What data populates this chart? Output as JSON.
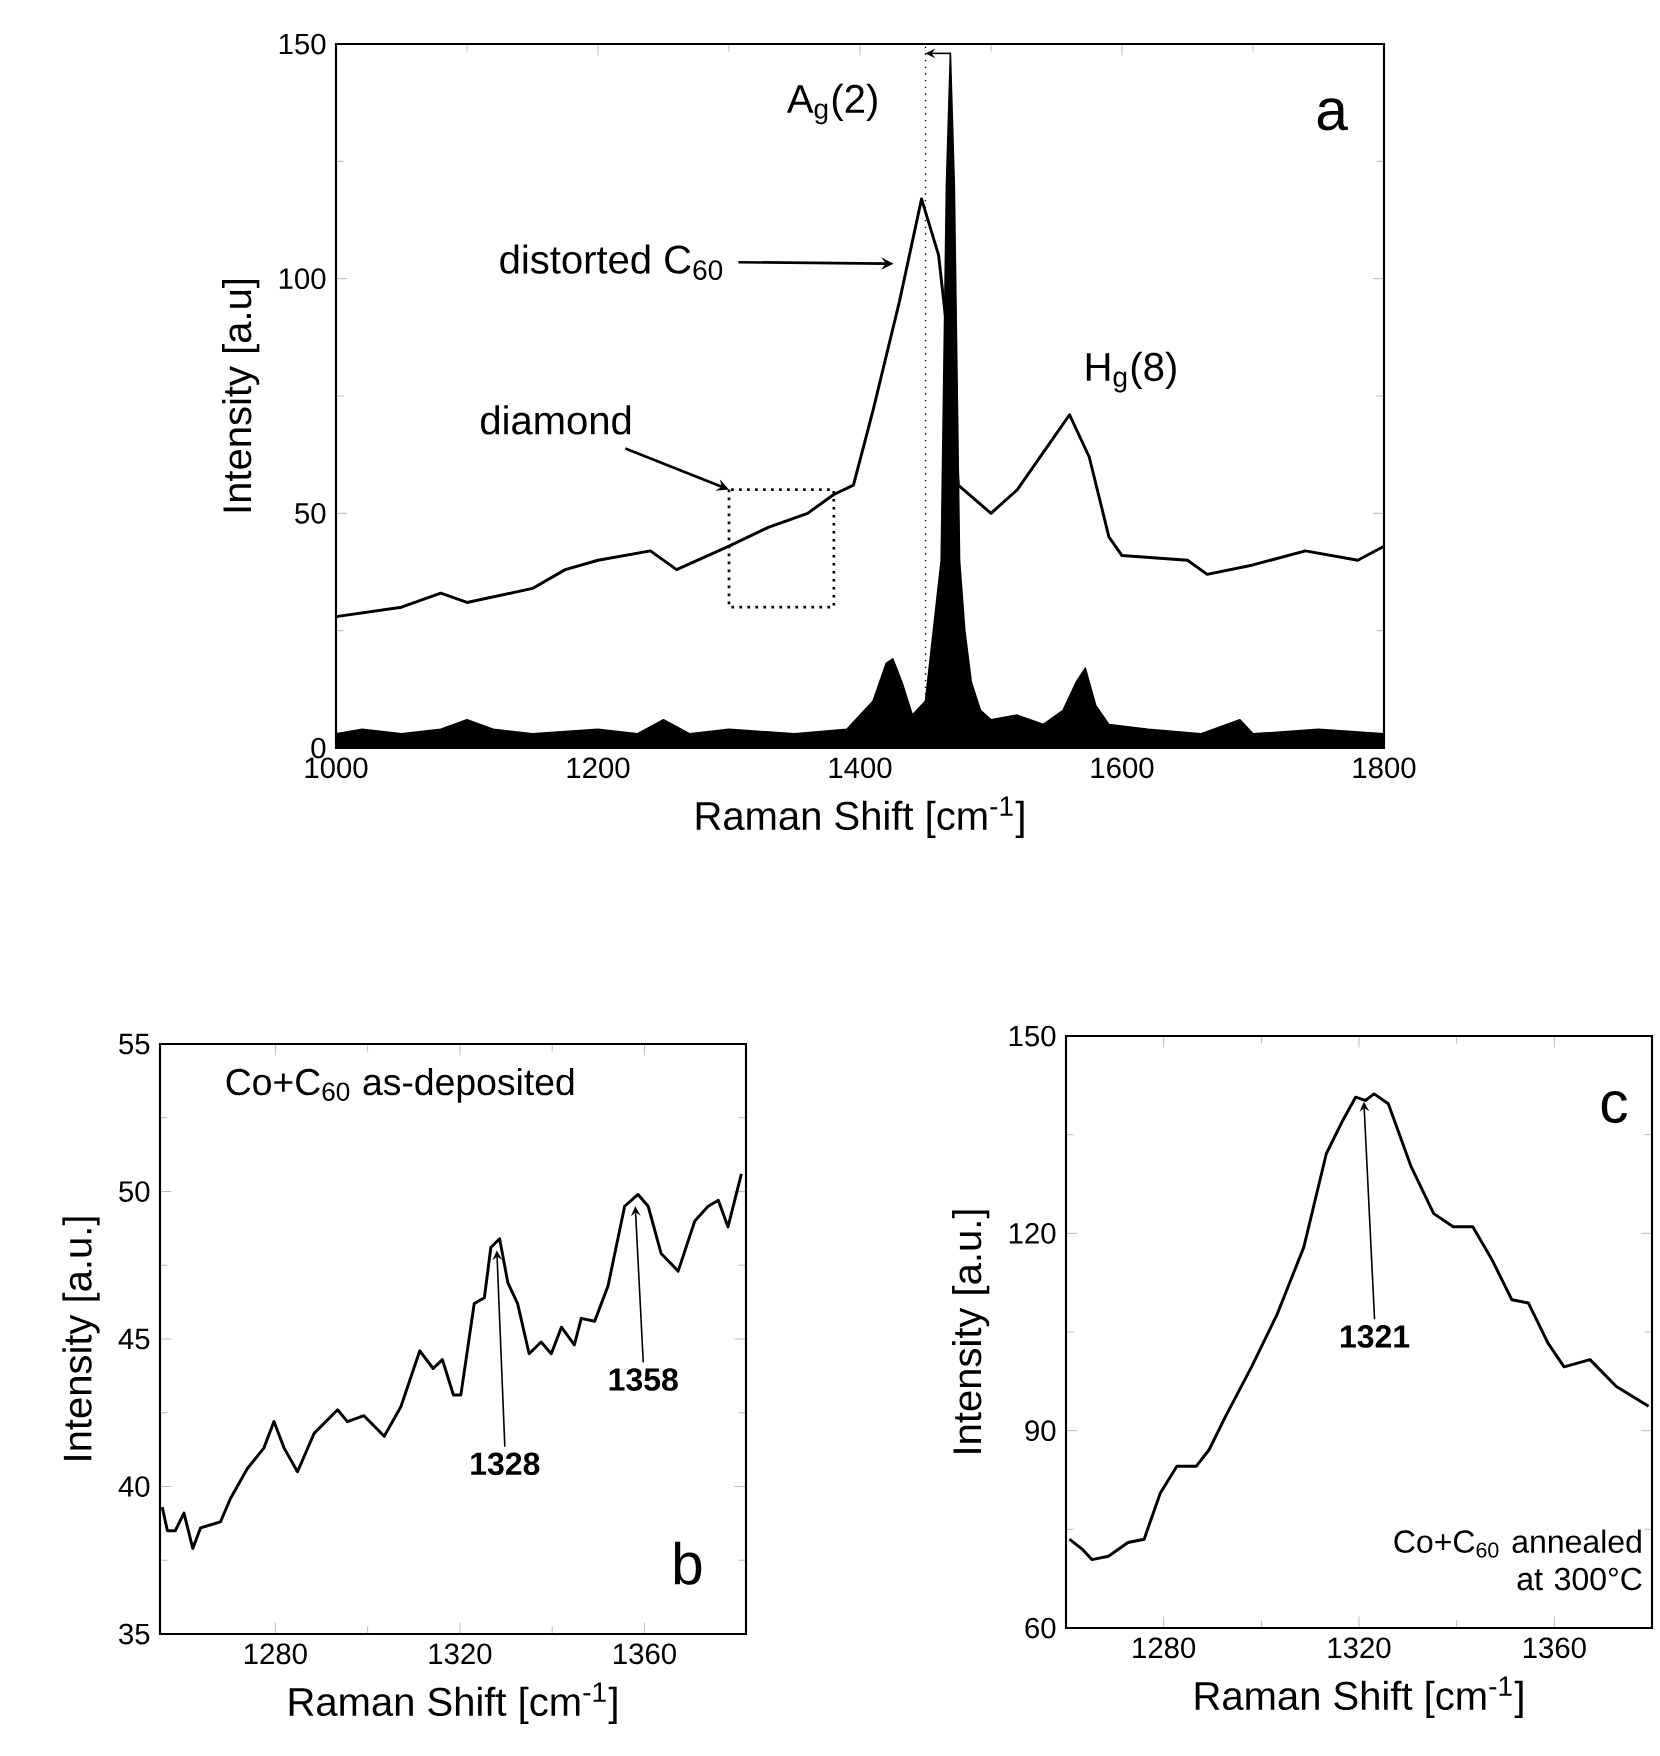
{
  "chart_data": [
    {
      "type": "line",
      "xlabel": "Raman Shift [cm$^{-1}$]",
      "ylabel": "Intensity [a.u]",
      "xlim": [
        1000,
        1800
      ],
      "ylim": [
        0,
        150
      ],
      "xticks": [
        1000,
        1200,
        1400,
        1600,
        1800
      ],
      "yticks": [
        0,
        50,
        100,
        150
      ],
      "series": [
        {
          "type": "area",
          "color": "#000000",
          "x": [
            1000,
            1020,
            1050,
            1080,
            1100,
            1120,
            1150,
            1200,
            1230,
            1250,
            1270,
            1300,
            1350,
            1390,
            1410,
            1420,
            1425,
            1432,
            1440,
            1450,
            1458,
            1462,
            1466,
            1469,
            1472,
            1476,
            1480,
            1485,
            1492,
            1500,
            1520,
            1540,
            1555,
            1565,
            1572,
            1580,
            1590,
            1620,
            1660,
            1690,
            1700,
            1750,
            1800
          ],
          "values": [
            3,
            4,
            3,
            4,
            6,
            4,
            3,
            4,
            3,
            6,
            3,
            4,
            3,
            4,
            10,
            18,
            19,
            14,
            7,
            10,
            30,
            40,
            120,
            148,
            120,
            40,
            25,
            14,
            8,
            6,
            7,
            5,
            8,
            14,
            17,
            9,
            5,
            4,
            3,
            6,
            3,
            4,
            3
          ]
        },
        {
          "color": "#000000",
          "x": [
            1000,
            1050,
            1080,
            1100,
            1150,
            1175,
            1200,
            1240,
            1260,
            1300,
            1330,
            1360,
            1380,
            1395,
            1410,
            1430,
            1447,
            1460,
            1470,
            1475,
            1500,
            1520,
            1545,
            1560,
            1575,
            1590,
            1600,
            1650,
            1665,
            1700,
            1740,
            1780,
            1800
          ],
          "values": [
            28,
            30,
            33,
            31,
            34,
            38,
            40,
            42,
            38,
            43,
            47,
            50,
            54,
            56,
            72,
            95,
            117,
            105,
            80,
            56,
            50,
            55,
            65,
            71,
            62,
            45,
            41,
            40,
            37,
            39,
            42,
            40,
            43
          ]
        }
      ],
      "ref_lines": [
        {
          "axis": "x",
          "value": 1450,
          "line_style": "dotted"
        }
      ],
      "annotations": [
        {
          "text": "A$_{g}$(2)",
          "x": 1469,
          "y": 148
        },
        "distorted C$_{60}$",
        {
          "text": "H$_{g}$(8)",
          "x": 1560,
          "y": 71
        },
        "diamond",
        "a"
      ]
    },
    {
      "type": "line",
      "xlabel": "Raman Shift [cm$^{-1}$]",
      "ylabel": "Intensity [a.u.]",
      "xlim": [
        1255,
        1382
      ],
      "ylim": [
        35,
        55
      ],
      "xticks": [
        1280,
        1320,
        1360
      ],
      "yticks": [
        35,
        40,
        45,
        50,
        55
      ],
      "series": [
        {
          "color": "#000000",
          "x": [
            1255.5,
            1256.6,
            1258.3,
            1260.2,
            1262.1,
            1263.8,
            1268.1,
            1270.3,
            1273.9,
            1277.5,
            1279.7,
            1281.9,
            1284.8,
            1288.4,
            1293.5,
            1295.6,
            1299.2,
            1303.6,
            1307.2,
            1311.3,
            1314.2,
            1316.2,
            1318.6,
            1320.2,
            1323.1,
            1325.3,
            1326.7,
            1328.6,
            1330.4,
            1332.5,
            1335.0,
            1337.6,
            1339.8,
            1342.0,
            1344.8,
            1346.3,
            1349.2,
            1352.1,
            1355.7,
            1358.6,
            1360.8,
            1363.6,
            1367.3,
            1370.9,
            1373.8,
            1376.0,
            1378.1,
            1381.0
          ],
          "values": [
            39.3,
            38.5,
            38.5,
            39.1,
            37.9,
            38.6,
            38.8,
            39.6,
            40.6,
            41.3,
            42.2,
            41.3,
            40.5,
            41.8,
            42.6,
            42.2,
            42.4,
            41.7,
            42.7,
            44.6,
            44.0,
            44.3,
            43.1,
            43.1,
            46.2,
            46.4,
            48.1,
            48.4,
            46.9,
            46.2,
            44.5,
            44.9,
            44.5,
            45.4,
            44.8,
            45.7,
            45.6,
            46.8,
            49.5,
            49.9,
            49.5,
            47.9,
            47.3,
            49.0,
            49.5,
            49.7,
            48.8,
            50.6
          ]
        }
      ],
      "annotations": [
        "Co+C$_{60}$ as-deposited",
        {
          "text": "1328",
          "x": 1328,
          "y": 48
        },
        {
          "text": "1358",
          "x": 1358,
          "y": 49.5
        },
        "b"
      ]
    },
    {
      "type": "line",
      "xlabel": "Raman Shift [cm$^{-1}$]",
      "ylabel": "Intensity [a.u.]",
      "xlim": [
        1260,
        1380
      ],
      "ylim": [
        60,
        150
      ],
      "xticks": [
        1280,
        1320,
        1360
      ],
      "yticks": [
        60,
        90,
        120,
        150
      ],
      "series": [
        {
          "color": "#000000",
          "x": [
            1260.7,
            1263.3,
            1265.3,
            1268.7,
            1272.7,
            1276.0,
            1279.3,
            1282.7,
            1286.7,
            1289.3,
            1292.7,
            1298.0,
            1303.3,
            1308.7,
            1313.3,
            1316.7,
            1319.3,
            1321.3,
            1323.1,
            1326.0,
            1330.7,
            1335.3,
            1339.3,
            1343.3,
            1347.3,
            1351.3,
            1354.7,
            1358.7,
            1362.0,
            1367.3,
            1372.7,
            1379.3
          ],
          "values": [
            73.5,
            72.0,
            70.4,
            70.9,
            73.0,
            73.5,
            80.5,
            84.6,
            84.6,
            87.1,
            92.2,
            99.7,
            107.8,
            117.9,
            132.1,
            137.2,
            140.7,
            140.2,
            141.2,
            139.7,
            130.1,
            123.0,
            121.0,
            121.0,
            115.9,
            109.9,
            109.4,
            103.3,
            99.7,
            100.8,
            96.7,
            93.7
          ]
        }
      ],
      "annotations": [
        "c",
        {
          "text": "1321",
          "x": 1321,
          "y": 140
        },
        "Co+C$_{60}$ annealed at 300°C"
      ]
    }
  ]
}
